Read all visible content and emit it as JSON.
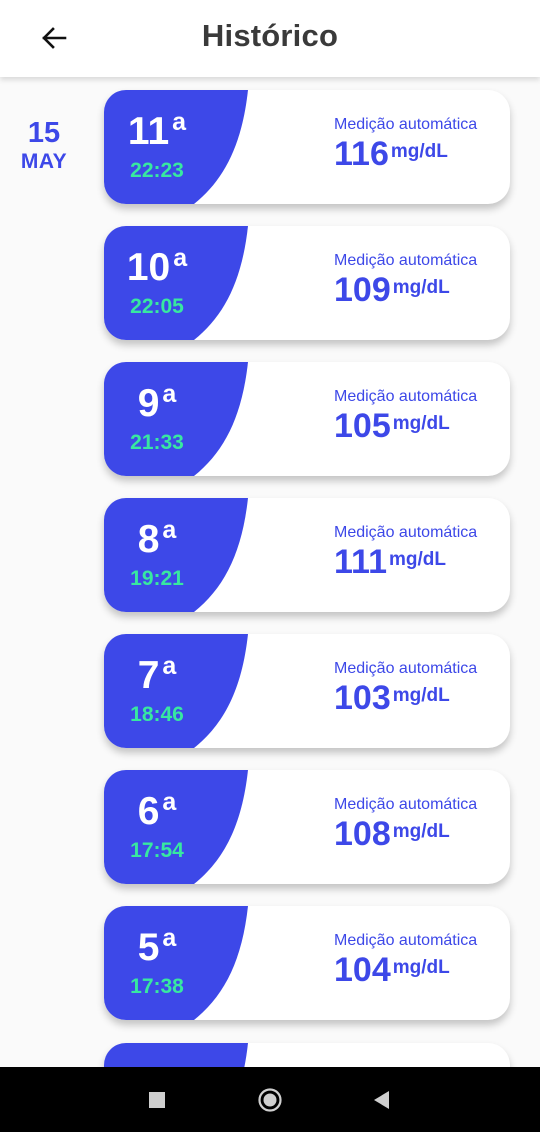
{
  "header": {
    "title": "Histórico",
    "back_icon": "arrow-left-icon"
  },
  "date_group": {
    "day": "15",
    "month": "MAY"
  },
  "measurements": [
    {
      "ordinal": "11",
      "suffix": "a",
      "time": "22:23",
      "label": "Medição automática",
      "value": "116",
      "unit": "mg/dL"
    },
    {
      "ordinal": "10",
      "suffix": "a",
      "time": "22:05",
      "label": "Medição automática",
      "value": "109",
      "unit": "mg/dL"
    },
    {
      "ordinal": "9",
      "suffix": "a",
      "time": "21:33",
      "label": "Medição automática",
      "value": "105",
      "unit": "mg/dL"
    },
    {
      "ordinal": "8",
      "suffix": "a",
      "time": "19:21",
      "label": "Medição automática",
      "value": "111",
      "unit": "mg/dL"
    },
    {
      "ordinal": "7",
      "suffix": "a",
      "time": "18:46",
      "label": "Medição automática",
      "value": "103",
      "unit": "mg/dL"
    },
    {
      "ordinal": "6",
      "suffix": "a",
      "time": "17:54",
      "label": "Medição automática",
      "value": "108",
      "unit": "mg/dL"
    },
    {
      "ordinal": "5",
      "suffix": "a",
      "time": "17:38",
      "label": "Medição automática",
      "value": "104",
      "unit": "mg/dL"
    }
  ],
  "colors": {
    "accent": "#3d48e8",
    "time_green": "#38e8a0",
    "title": "#3a3a3a"
  },
  "navbar": {
    "recents": "square-icon",
    "home": "circle-icon",
    "back": "triangle-back-icon"
  }
}
